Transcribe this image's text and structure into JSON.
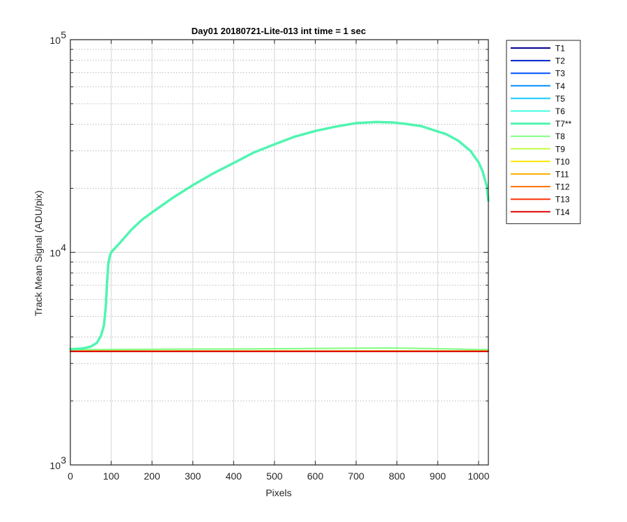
{
  "chart_data": {
    "type": "line",
    "title": "Day01 20180721-Lite-013 int time = 1 sec",
    "xlabel": "Pixels",
    "ylabel": "Track Mean Signal (ADU/pix)",
    "xlim": [
      0,
      1024
    ],
    "ylim": [
      1000,
      100000
    ],
    "yscale": "log",
    "xticks": [
      0,
      100,
      200,
      300,
      400,
      500,
      600,
      700,
      800,
      900,
      1000
    ],
    "xtick_labels": [
      "0",
      "100",
      "200",
      "300",
      "400",
      "500",
      "600",
      "700",
      "800",
      "900",
      "1000"
    ],
    "yticks": [
      {
        "base": "10",
        "exp": "3",
        "value": 1000
      },
      {
        "base": "10",
        "exp": "4",
        "value": 10000
      },
      {
        "base": "10",
        "exp": "5",
        "value": 100000
      }
    ],
    "grid": true,
    "legend_position": "outside-top-right",
    "series": [
      {
        "name": "T1",
        "color": "#00008f",
        "x": [
          0,
          1024
        ],
        "y": [
          3420,
          3420
        ]
      },
      {
        "name": "T2",
        "color": "#0020c8",
        "x": [
          0,
          1024
        ],
        "y": [
          3420,
          3420
        ]
      },
      {
        "name": "T3",
        "color": "#0050ff",
        "x": [
          0,
          1024
        ],
        "y": [
          3420,
          3420
        ]
      },
      {
        "name": "T4",
        "color": "#0090ff",
        "x": [
          0,
          1024
        ],
        "y": [
          3420,
          3420
        ]
      },
      {
        "name": "T5",
        "color": "#10c8ff",
        "x": [
          0,
          1024
        ],
        "y": [
          3420,
          3420
        ]
      },
      {
        "name": "T6",
        "color": "#40ffe0",
        "x": [
          0,
          1024
        ],
        "y": [
          3420,
          3420
        ]
      },
      {
        "name": "T7**",
        "color": "#50f5b0",
        "highlight": true,
        "x": [
          0,
          30,
          50,
          65,
          75,
          82,
          87,
          90,
          93,
          96,
          100,
          120,
          150,
          175,
          200,
          250,
          300,
          350,
          400,
          450,
          500,
          550,
          600,
          650,
          700,
          750,
          790,
          820,
          860,
          900,
          920,
          950,
          980,
          1000,
          1010,
          1020,
          1024
        ],
        "y": [
          3500,
          3530,
          3600,
          3750,
          4050,
          4500,
          5600,
          7300,
          8800,
          9500,
          10000,
          11000,
          12800,
          14200,
          15400,
          18000,
          20700,
          23500,
          26300,
          29500,
          32200,
          35000,
          37200,
          39000,
          40500,
          41000,
          40800,
          40200,
          39200,
          37000,
          36000,
          33500,
          30000,
          26500,
          24000,
          20500,
          17500
        ]
      },
      {
        "name": "T8",
        "color": "#80ff80",
        "x": [
          0,
          200,
          400,
          600,
          700,
          780,
          900,
          1024
        ],
        "y": [
          3480,
          3500,
          3510,
          3530,
          3540,
          3550,
          3520,
          3480
        ]
      },
      {
        "name": "T9",
        "color": "#c0ff40",
        "x": [
          0,
          1024
        ],
        "y": [
          3440,
          3440
        ]
      },
      {
        "name": "T10",
        "color": "#ffe600",
        "x": [
          0,
          1024
        ],
        "y": [
          3430,
          3430
        ]
      },
      {
        "name": "T11",
        "color": "#ffb000",
        "x": [
          0,
          1024
        ],
        "y": [
          3425,
          3425
        ]
      },
      {
        "name": "T12",
        "color": "#ff7000",
        "x": [
          0,
          1024
        ],
        "y": [
          3425,
          3425
        ]
      },
      {
        "name": "T13",
        "color": "#ff3000",
        "x": [
          0,
          1024
        ],
        "y": [
          3420,
          3420
        ]
      },
      {
        "name": "T14",
        "color": "#e00000",
        "x": [
          0,
          1024
        ],
        "y": [
          3420,
          3420
        ]
      }
    ]
  }
}
